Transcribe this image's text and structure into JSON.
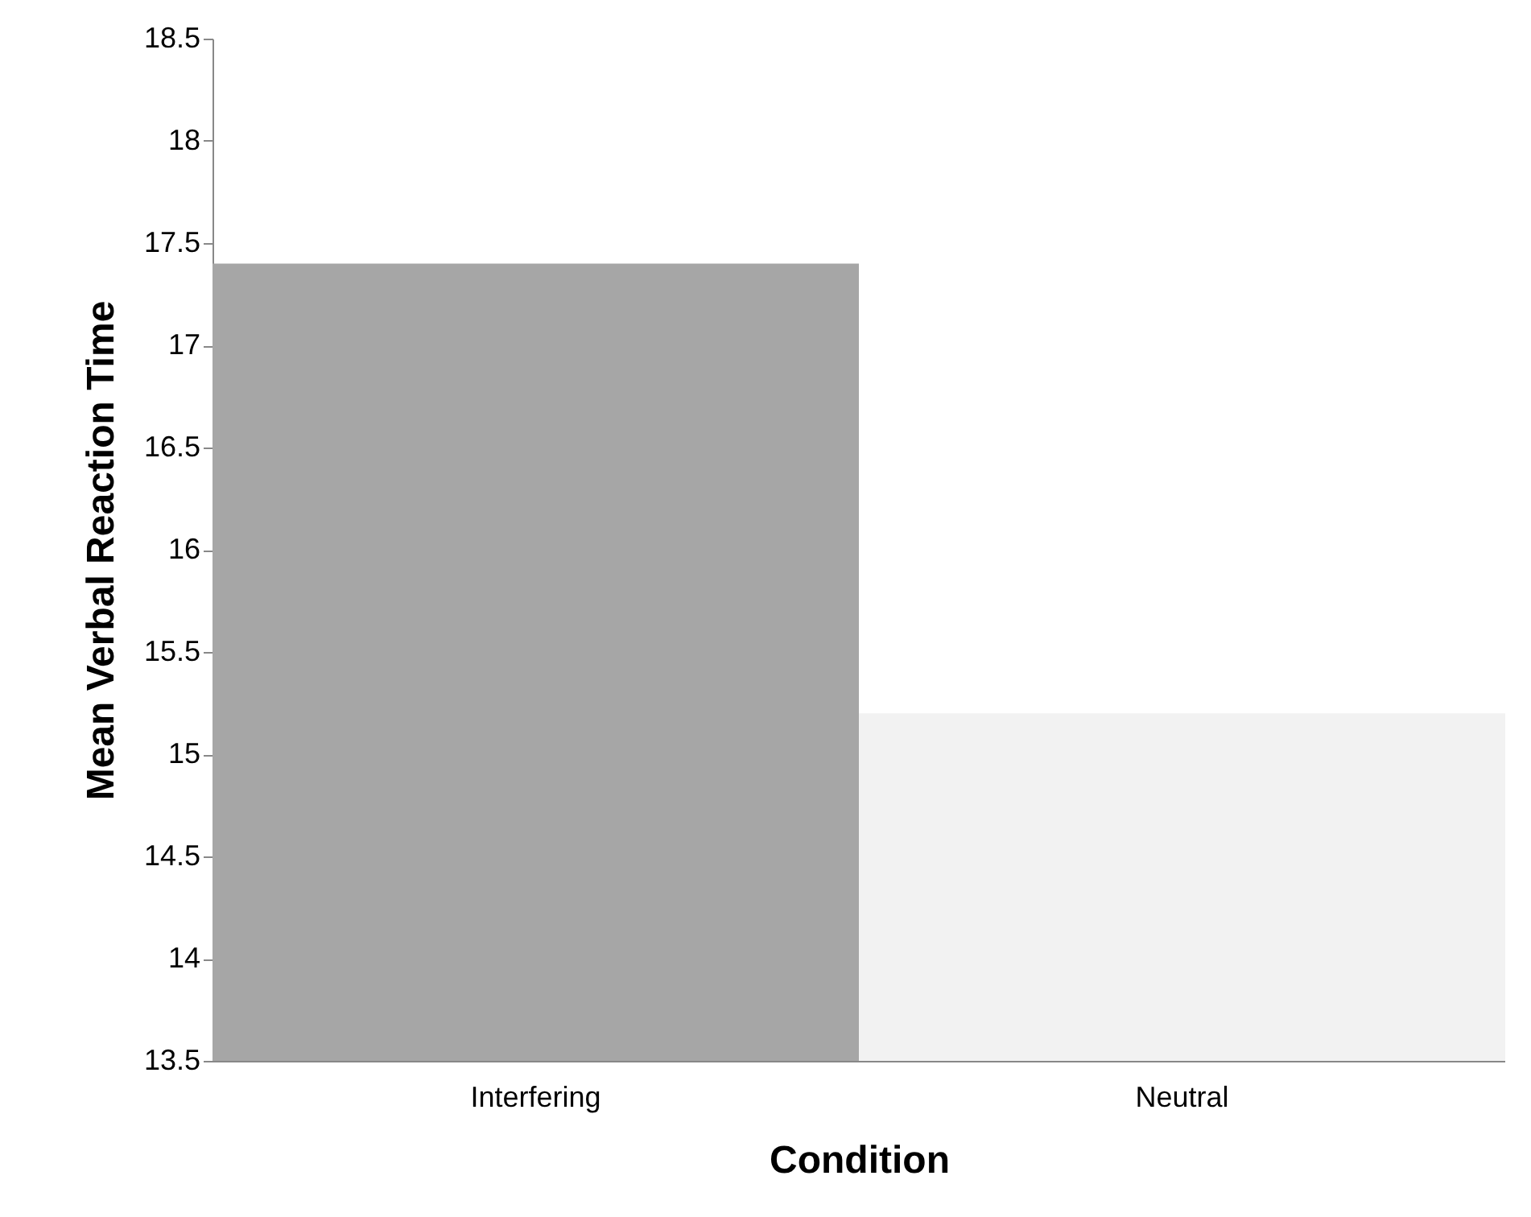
{
  "chart_data": {
    "type": "bar",
    "xlabel": "Condition",
    "ylabel": "Mean Verbal Reaction Time",
    "categories": [
      "Interfering",
      "Neutral"
    ],
    "values": [
      17.4,
      15.2
    ],
    "colors": [
      "#a6a6a6",
      "#f2f2f2"
    ],
    "ylim": [
      13.5,
      18.5
    ],
    "yticks": [
      13.5,
      14,
      14.5,
      15,
      15.5,
      16,
      16.5,
      17,
      17.5,
      18,
      18.5
    ],
    "grid": false,
    "legend": false
  }
}
